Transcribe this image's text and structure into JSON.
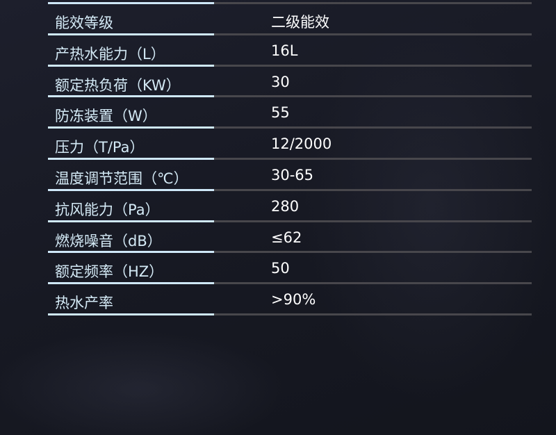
{
  "specs": [
    {
      "label": "能效等级",
      "value": "二级能效"
    },
    {
      "label": "产热水能力（L）",
      "value": "16L"
    },
    {
      "label": "额定热负荷（KW）",
      "value": "30"
    },
    {
      "label": "防冻装置（W）",
      "value": "55"
    },
    {
      "label": "压力（T/Pa）",
      "value": "12/2000"
    },
    {
      "label": "温度调节范围（℃）",
      "value": "30-65"
    },
    {
      "label": "抗风能力（Pa）",
      "value": "280"
    },
    {
      "label": "燃烧噪音（dB）",
      "value": "≤62"
    },
    {
      "label": "额定频率（HZ）",
      "value": "50"
    },
    {
      "label": "热水产率",
      "value": ">90%"
    }
  ],
  "colors": {
    "label": "#d4eaf6",
    "value": "#ffffff",
    "accent_line": "#cfe8f8",
    "divider": "#48474c",
    "background": "#171923"
  }
}
